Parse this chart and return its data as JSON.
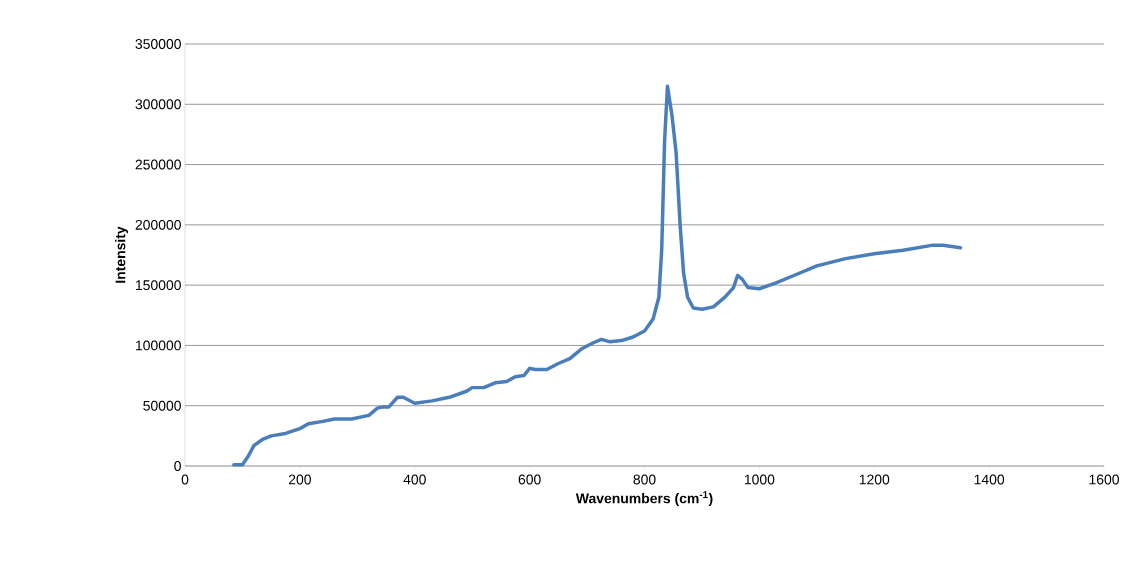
{
  "chart_data": {
    "type": "line",
    "xlabel": "Wavenumbers (cm$^{-1}$)",
    "ylabel": "Intensity",
    "xlim": [
      0,
      1600
    ],
    "xticks": [
      0,
      200,
      400,
      600,
      800,
      1000,
      1200,
      1400,
      1600
    ],
    "ylim": [
      0,
      350000
    ],
    "yticks": [
      0,
      50000,
      100000,
      150000,
      200000,
      250000,
      300000,
      350000
    ],
    "grid": "y",
    "marker": "none",
    "line_style": "solid",
    "series": [
      {
        "color": "#4a7ebb",
        "x": [
          85,
          100,
          110,
          120,
          135,
          150,
          175,
          200,
          215,
          240,
          260,
          290,
          320,
          335,
          345,
          355,
          370,
          380,
          400,
          430,
          460,
          490,
          500,
          520,
          540,
          560,
          575,
          590,
          600,
          610,
          630,
          650,
          670,
          690,
          710,
          725,
          740,
          760,
          780,
          800,
          815,
          825,
          830,
          835,
          840,
          848,
          855,
          862,
          868,
          875,
          885,
          900,
          920,
          940,
          955,
          962,
          970,
          980,
          1000,
          1030,
          1060,
          1100,
          1150,
          1200,
          1250,
          1300,
          1320,
          1350
        ],
        "values": [
          1000,
          1000,
          8000,
          17000,
          22000,
          25000,
          27000,
          31000,
          35000,
          37000,
          39000,
          39000,
          42000,
          48000,
          49000,
          49000,
          57000,
          57000,
          52000,
          54000,
          57000,
          62000,
          65000,
          65000,
          69000,
          70000,
          74000,
          75000,
          81000,
          80000,
          80000,
          85000,
          89000,
          97000,
          102000,
          105000,
          103000,
          104000,
          107000,
          112000,
          122000,
          140000,
          180000,
          270000,
          315000,
          290000,
          260000,
          200000,
          160000,
          140000,
          131000,
          130000,
          132000,
          140000,
          148000,
          158000,
          155000,
          148000,
          147000,
          152000,
          158000,
          166000,
          172000,
          176000,
          179000,
          183000,
          183000,
          181000
        ]
      }
    ]
  }
}
